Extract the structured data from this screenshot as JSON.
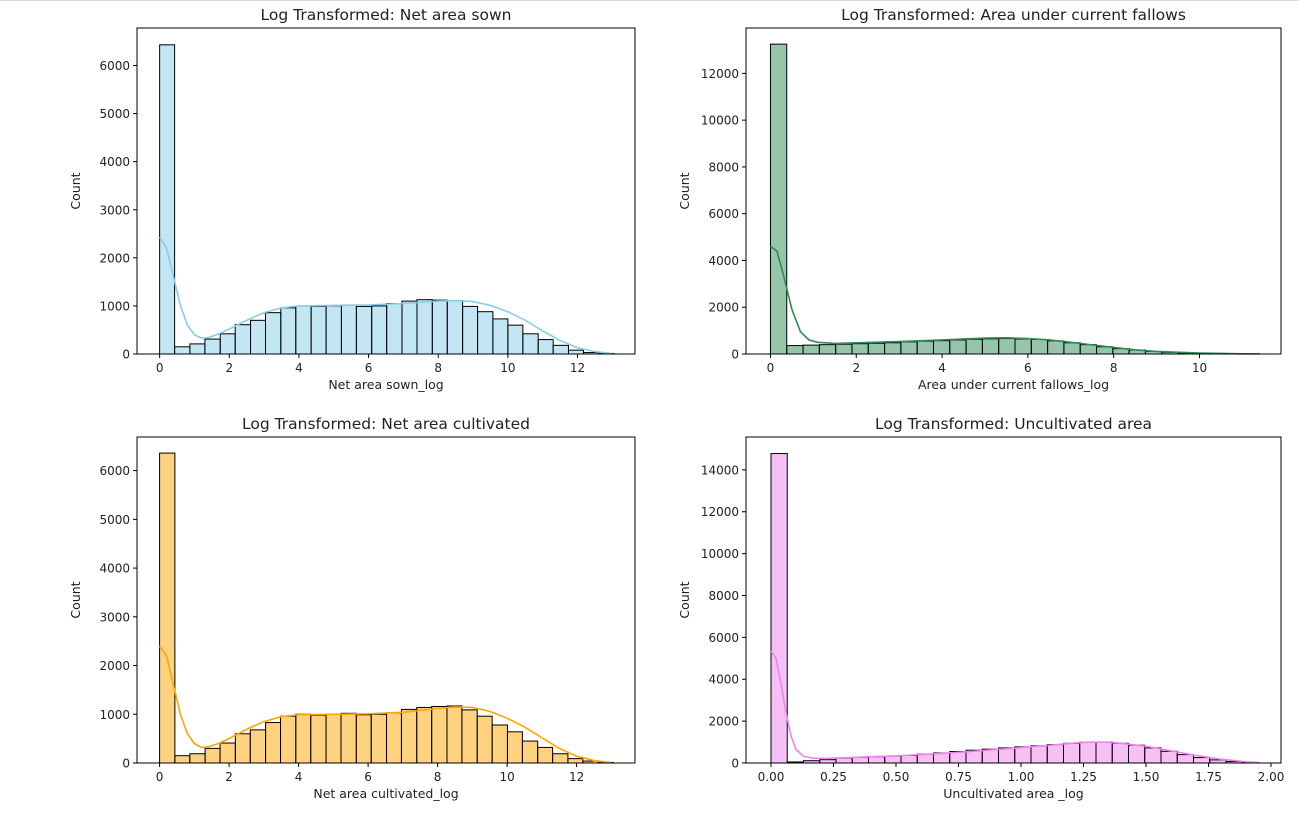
{
  "chart_data": [
    {
      "type": "histogram",
      "title": "Log Transformed: Net area sown",
      "xlabel": "Net area sown_log",
      "ylabel": "Count",
      "color": "#87ceeb",
      "kde_color": "#87ceeb",
      "xlim": [
        -0.65,
        13.65
      ],
      "ylim": [
        0,
        6780
      ],
      "xticks": [
        0,
        2,
        4,
        6,
        8,
        10,
        12
      ],
      "yticks": [
        0,
        1000,
        2000,
        3000,
        4000,
        5000,
        6000
      ],
      "bins": [
        0.0,
        0.43,
        0.87,
        1.3,
        1.74,
        2.17,
        2.61,
        3.04,
        3.48,
        3.91,
        4.35,
        4.78,
        5.22,
        5.65,
        6.09,
        6.52,
        6.96,
        7.39,
        7.83,
        8.26,
        8.7,
        9.13,
        9.57,
        10.0,
        10.43,
        10.87,
        11.3,
        11.74,
        12.17,
        12.61,
        13.04
      ],
      "counts": [
        6430,
        150,
        210,
        310,
        420,
        610,
        700,
        860,
        960,
        1000,
        990,
        1000,
        1020,
        990,
        1000,
        1050,
        1100,
        1130,
        1120,
        1110,
        990,
        880,
        730,
        600,
        420,
        300,
        180,
        80,
        30,
        10
      ],
      "kde": {
        "x": [
          0,
          0.2,
          0.4,
          0.6,
          0.8,
          1.0,
          1.2,
          1.4,
          1.7,
          2.0,
          2.5,
          3.0,
          3.5,
          4.0,
          5.0,
          6.0,
          7.0,
          8.0,
          8.5,
          9.0,
          9.5,
          10.0,
          10.5,
          11.0,
          11.5,
          12.0,
          12.5,
          13.0
        ],
        "y": [
          2430,
          2200,
          1600,
          1000,
          600,
          400,
          330,
          340,
          420,
          520,
          700,
          860,
          960,
          1000,
          1010,
          1020,
          1050,
          1100,
          1110,
          1090,
          1010,
          880,
          700,
          480,
          280,
          130,
          50,
          10
        ]
      }
    },
    {
      "type": "histogram",
      "title": "Log Transformed: Area under current fallows",
      "xlabel": "Area under current fallows_log",
      "ylabel": "Count",
      "color": "#2e8b57",
      "kde_color": "#2e8b57",
      "xlim": [
        -0.57,
        11.9
      ],
      "ylim": [
        0,
        13940
      ],
      "xticks": [
        0,
        2,
        4,
        6,
        8,
        10
      ],
      "yticks": [
        0,
        2000,
        4000,
        6000,
        8000,
        10000,
        12000
      ],
      "bins": [
        0.0,
        0.38,
        0.76,
        1.14,
        1.52,
        1.9,
        2.28,
        2.66,
        3.04,
        3.42,
        3.8,
        4.18,
        4.56,
        4.94,
        5.32,
        5.7,
        6.08,
        6.46,
        6.84,
        7.22,
        7.6,
        7.98,
        8.36,
        8.74,
        9.12,
        9.5,
        9.88,
        10.26,
        10.64,
        11.02,
        11.4
      ],
      "counts": [
        13250,
        360,
        380,
        400,
        420,
        440,
        460,
        480,
        520,
        550,
        570,
        600,
        630,
        650,
        660,
        640,
        620,
        560,
        480,
        400,
        310,
        230,
        170,
        110,
        70,
        40,
        20,
        10,
        5,
        3
      ],
      "kde": {
        "x": [
          0,
          0.15,
          0.3,
          0.5,
          0.7,
          0.9,
          1.1,
          1.5,
          2.0,
          3.0,
          4.0,
          5.0,
          5.5,
          6.0,
          6.5,
          7.0,
          7.5,
          8.0,
          8.5,
          9.0,
          10.0,
          11.0,
          11.4
        ],
        "y": [
          4600,
          4400,
          3400,
          1900,
          950,
          600,
          500,
          450,
          480,
          530,
          600,
          680,
          690,
          660,
          600,
          500,
          390,
          280,
          180,
          110,
          40,
          10,
          5
        ]
      }
    },
    {
      "type": "histogram",
      "title": "Log Transformed: Net area cultivated",
      "xlabel": "Net area cultivated_log",
      "ylabel": "Count",
      "color": "#ffa500",
      "kde_color": "#ffa500",
      "xlim": [
        -0.65,
        13.68
      ],
      "ylim": [
        0,
        6690
      ],
      "xticks": [
        0,
        2,
        4,
        6,
        8,
        10,
        12
      ],
      "yticks": [
        0,
        1000,
        2000,
        3000,
        4000,
        5000,
        6000
      ],
      "bins": [
        0.0,
        0.44,
        0.87,
        1.31,
        1.74,
        2.18,
        2.61,
        3.05,
        3.48,
        3.92,
        4.35,
        4.79,
        5.22,
        5.66,
        6.09,
        6.53,
        6.96,
        7.4,
        7.83,
        8.27,
        8.7,
        9.14,
        9.57,
        10.01,
        10.44,
        10.88,
        11.31,
        11.75,
        12.18,
        12.62,
        13.05
      ],
      "counts": [
        6360,
        150,
        190,
        300,
        410,
        600,
        680,
        830,
        960,
        1000,
        980,
        1000,
        1020,
        990,
        1000,
        1030,
        1100,
        1140,
        1160,
        1170,
        1090,
        960,
        780,
        640,
        450,
        320,
        190,
        90,
        40,
        10
      ],
      "kde": {
        "x": [
          0,
          0.2,
          0.4,
          0.6,
          0.8,
          1.0,
          1.2,
          1.4,
          1.7,
          2.0,
          2.5,
          3.0,
          3.5,
          4.0,
          5.0,
          6.0,
          7.0,
          8.0,
          8.5,
          9.0,
          9.5,
          10.0,
          10.5,
          11.0,
          11.5,
          12.0,
          12.5,
          13.0
        ],
        "y": [
          2400,
          2200,
          1600,
          1000,
          600,
          400,
          320,
          330,
          400,
          500,
          690,
          850,
          950,
          990,
          1000,
          1010,
          1040,
          1120,
          1150,
          1140,
          1060,
          920,
          740,
          520,
          300,
          140,
          50,
          10
        ]
      }
    },
    {
      "type": "histogram",
      "title": "Log Transformed: Uncultivated area",
      "xlabel": "Uncultivated area _log",
      "ylabel": "Count",
      "color": "#ee82ee",
      "kde_color": "#ee82ee",
      "xlim": [
        -0.1,
        2.04
      ],
      "ylim": [
        0,
        15570
      ],
      "xticks": [
        0.0,
        0.25,
        0.5,
        0.75,
        1.0,
        1.25,
        1.5,
        1.75,
        2.0
      ],
      "xticklabels": [
        "0.00",
        "0.25",
        "0.50",
        "0.75",
        "1.00",
        "1.25",
        "1.50",
        "1.75",
        "2.00"
      ],
      "yticks": [
        0,
        2000,
        4000,
        6000,
        8000,
        10000,
        12000,
        14000
      ],
      "bins": [
        0.0,
        0.065,
        0.13,
        0.195,
        0.26,
        0.325,
        0.39,
        0.455,
        0.52,
        0.585,
        0.65,
        0.715,
        0.78,
        0.845,
        0.91,
        0.975,
        1.04,
        1.105,
        1.17,
        1.235,
        1.3,
        1.365,
        1.43,
        1.495,
        1.56,
        1.625,
        1.69,
        1.755,
        1.82,
        1.885,
        1.95
      ],
      "counts": [
        14780,
        50,
        110,
        160,
        230,
        270,
        300,
        330,
        360,
        420,
        480,
        550,
        610,
        660,
        720,
        770,
        820,
        880,
        940,
        990,
        1000,
        940,
        850,
        720,
        560,
        400,
        260,
        150,
        70,
        25
      ],
      "kde": {
        "x": [
          0,
          0.02,
          0.04,
          0.06,
          0.08,
          0.1,
          0.13,
          0.17,
          0.22,
          0.3,
          0.4,
          0.5,
          0.6,
          0.7,
          0.8,
          0.9,
          1.0,
          1.1,
          1.2,
          1.25,
          1.3,
          1.35,
          1.4,
          1.5,
          1.6,
          1.7,
          1.8,
          1.9,
          1.95
        ],
        "y": [
          5350,
          5000,
          3800,
          2400,
          1300,
          650,
          320,
          230,
          220,
          250,
          300,
          340,
          400,
          470,
          550,
          640,
          730,
          830,
          940,
          980,
          1000,
          990,
          940,
          800,
          580,
          360,
          180,
          60,
          20
        ]
      }
    }
  ]
}
